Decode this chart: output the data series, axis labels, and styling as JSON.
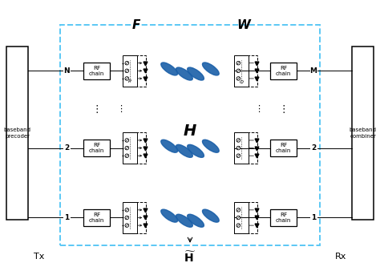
{
  "bg_color": "#ffffff",
  "dashed_blue": "#5BC8F5",
  "beam_color": "#1a5fa8",
  "tx_label": "Tx",
  "rx_label": "Rx",
  "baseband_precoder": "baseband\nprecoder",
  "baseband_combiner": "baseband\ncombiner",
  "F_label": "F",
  "W_label": "W",
  "H_label": "H",
  "rf_chain_label": "RF\nchain",
  "row_labels_tx": [
    "N",
    "2",
    "1"
  ],
  "row_labels_rx": [
    "M",
    "2",
    "1"
  ],
  "P_label": "P",
  "Q_label": "Q",
  "figsize": [
    4.74,
    3.33
  ],
  "dpi": 100
}
